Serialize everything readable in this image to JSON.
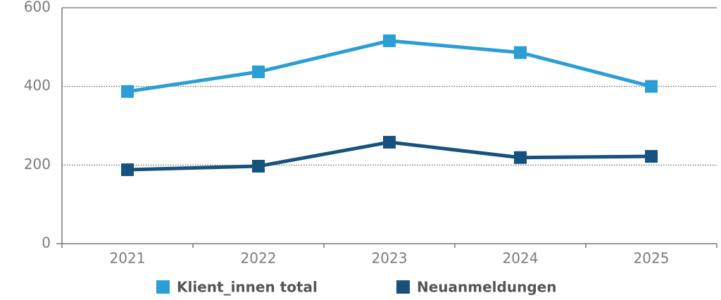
{
  "chart_data": {
    "type": "line",
    "categories": [
      "2021",
      "2022",
      "2023",
      "2024",
      "2025"
    ],
    "series": [
      {
        "name": "Klient_innen total",
        "color": "#2b9ed6",
        "values": [
          387,
          437,
          516,
          486,
          400
        ]
      },
      {
        "name": "Neuanmeldungen",
        "color": "#17527e",
        "values": [
          188,
          197,
          258,
          219,
          222
        ]
      }
    ],
    "ylim": [
      0,
      600
    ],
    "yticks": [
      0,
      200,
      400,
      600
    ],
    "grid": true
  }
}
